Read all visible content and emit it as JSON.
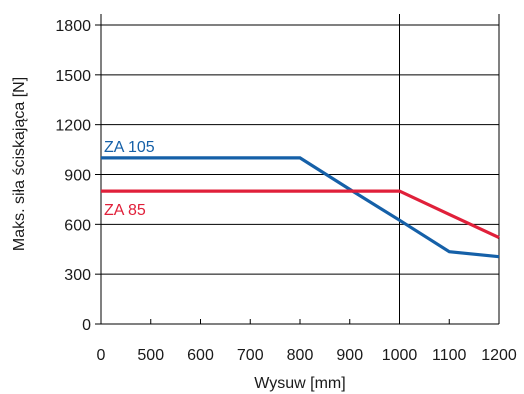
{
  "chart_data": {
    "type": "line",
    "xlabel": "Wysuw [mm]",
    "ylabel": "Maks. siła ściskająca [N]",
    "x_ticks": [
      0,
      500,
      600,
      700,
      800,
      900,
      1000,
      1100,
      1200
    ],
    "y_ticks": [
      0,
      300,
      600,
      900,
      1200,
      1500,
      1800
    ],
    "ylim": [
      0,
      1800
    ],
    "grid": "horizontal lines at y ticks; vertical lines at 1000 and 1200",
    "legend": "inline labels",
    "series": [
      {
        "name": "ZA 105",
        "color": "#1560a8",
        "points": [
          [
            0,
            1000
          ],
          [
            500,
            1000
          ],
          [
            600,
            1000
          ],
          [
            700,
            1000
          ],
          [
            800,
            1000
          ],
          [
            900,
            810
          ],
          [
            1000,
            625
          ],
          [
            1100,
            435
          ],
          [
            1200,
            405
          ]
        ]
      },
      {
        "name": "ZA 85",
        "color": "#e0203a",
        "points": [
          [
            0,
            800
          ],
          [
            500,
            800
          ],
          [
            600,
            800
          ],
          [
            700,
            800
          ],
          [
            800,
            800
          ],
          [
            900,
            800
          ],
          [
            1000,
            800
          ],
          [
            1100,
            660
          ],
          [
            1200,
            520
          ]
        ]
      }
    ]
  }
}
